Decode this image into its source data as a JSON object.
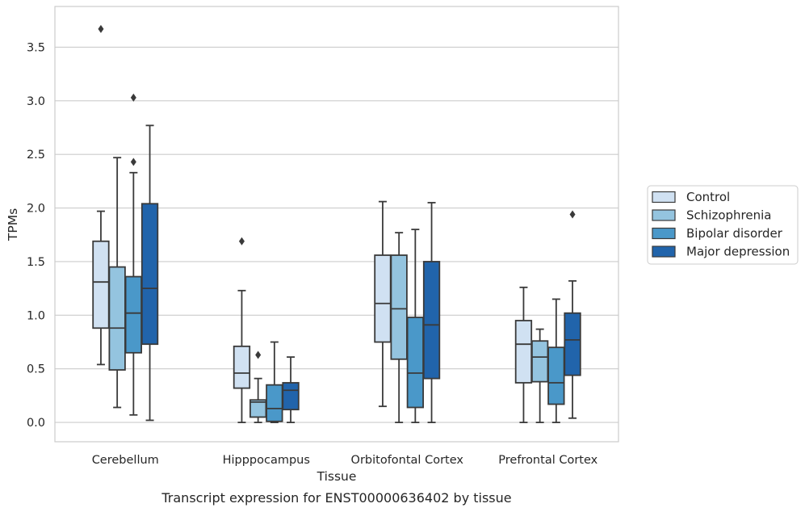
{
  "caption": "Transcript expression for ENST00000636402 by tissue",
  "chart_data": {
    "type": "boxplot",
    "xlabel": "Tissue",
    "ylabel": "TPMs",
    "ylim": [
      -0.18,
      3.88
    ],
    "yticks": [
      0.0,
      0.5,
      1.0,
      1.5,
      2.0,
      2.5,
      3.0,
      3.5
    ],
    "ytick_labels": [
      "0.0",
      "0.5",
      "1.0",
      "1.5",
      "2.0",
      "2.5",
      "3.0",
      "3.5"
    ],
    "grid": "horizontal",
    "legend_position": "right",
    "categories": [
      "Cerebellum",
      "Hipppocampus",
      "Orbitofontal Cortex",
      "Prefrontal Cortex"
    ],
    "series": [
      {
        "name": "Control",
        "color": "#d0e1f2",
        "boxes": [
          {
            "whisker_low": 0.54,
            "q1": 0.88,
            "median": 1.31,
            "q3": 1.69,
            "whisker_high": 1.97,
            "outliers": [
              3.67
            ]
          },
          {
            "whisker_low": 0.0,
            "q1": 0.32,
            "median": 0.46,
            "q3": 0.71,
            "whisker_high": 1.23,
            "outliers": [
              1.69
            ]
          },
          {
            "whisker_low": 0.15,
            "q1": 0.75,
            "median": 1.11,
            "q3": 1.56,
            "whisker_high": 2.06,
            "outliers": []
          },
          {
            "whisker_low": 0.0,
            "q1": 0.37,
            "median": 0.73,
            "q3": 0.95,
            "whisker_high": 1.26,
            "outliers": []
          }
        ]
      },
      {
        "name": "Schizophrenia",
        "color": "#94c4df",
        "boxes": [
          {
            "whisker_low": 0.14,
            "q1": 0.49,
            "median": 0.88,
            "q3": 1.45,
            "whisker_high": 2.47,
            "outliers": []
          },
          {
            "whisker_low": 0.0,
            "q1": 0.05,
            "median": 0.19,
            "q3": 0.21,
            "whisker_high": 0.41,
            "outliers": [
              0.63
            ]
          },
          {
            "whisker_low": 0.0,
            "q1": 0.59,
            "median": 1.06,
            "q3": 1.56,
            "whisker_high": 1.77,
            "outliers": []
          },
          {
            "whisker_low": 0.0,
            "q1": 0.38,
            "median": 0.61,
            "q3": 0.76,
            "whisker_high": 0.87,
            "outliers": []
          }
        ]
      },
      {
        "name": "Bipolar disorder",
        "color": "#4a98c9",
        "boxes": [
          {
            "whisker_low": 0.07,
            "q1": 0.65,
            "median": 1.02,
            "q3": 1.36,
            "whisker_high": 2.33,
            "outliers": [
              2.43,
              3.03
            ]
          },
          {
            "whisker_low": 0.0,
            "q1": 0.01,
            "median": 0.13,
            "q3": 0.35,
            "whisker_high": 0.75,
            "outliers": []
          },
          {
            "whisker_low": 0.0,
            "q1": 0.14,
            "median": 0.46,
            "q3": 0.98,
            "whisker_high": 1.8,
            "outliers": []
          },
          {
            "whisker_low": 0.0,
            "q1": 0.17,
            "median": 0.37,
            "q3": 0.7,
            "whisker_high": 1.15,
            "outliers": []
          }
        ]
      },
      {
        "name": "Major depression",
        "color": "#2164ab",
        "boxes": [
          {
            "whisker_low": 0.02,
            "q1": 0.73,
            "median": 1.25,
            "q3": 2.04,
            "whisker_high": 2.77,
            "outliers": []
          },
          {
            "whisker_low": 0.0,
            "q1": 0.12,
            "median": 0.3,
            "q3": 0.37,
            "whisker_high": 0.61,
            "outliers": []
          },
          {
            "whisker_low": 0.0,
            "q1": 0.41,
            "median": 0.91,
            "q3": 1.5,
            "whisker_high": 2.05,
            "outliers": []
          },
          {
            "whisker_low": 0.04,
            "q1": 0.44,
            "median": 0.77,
            "q3": 1.02,
            "whisker_high": 1.32,
            "outliers": [
              1.94
            ]
          }
        ]
      }
    ]
  }
}
